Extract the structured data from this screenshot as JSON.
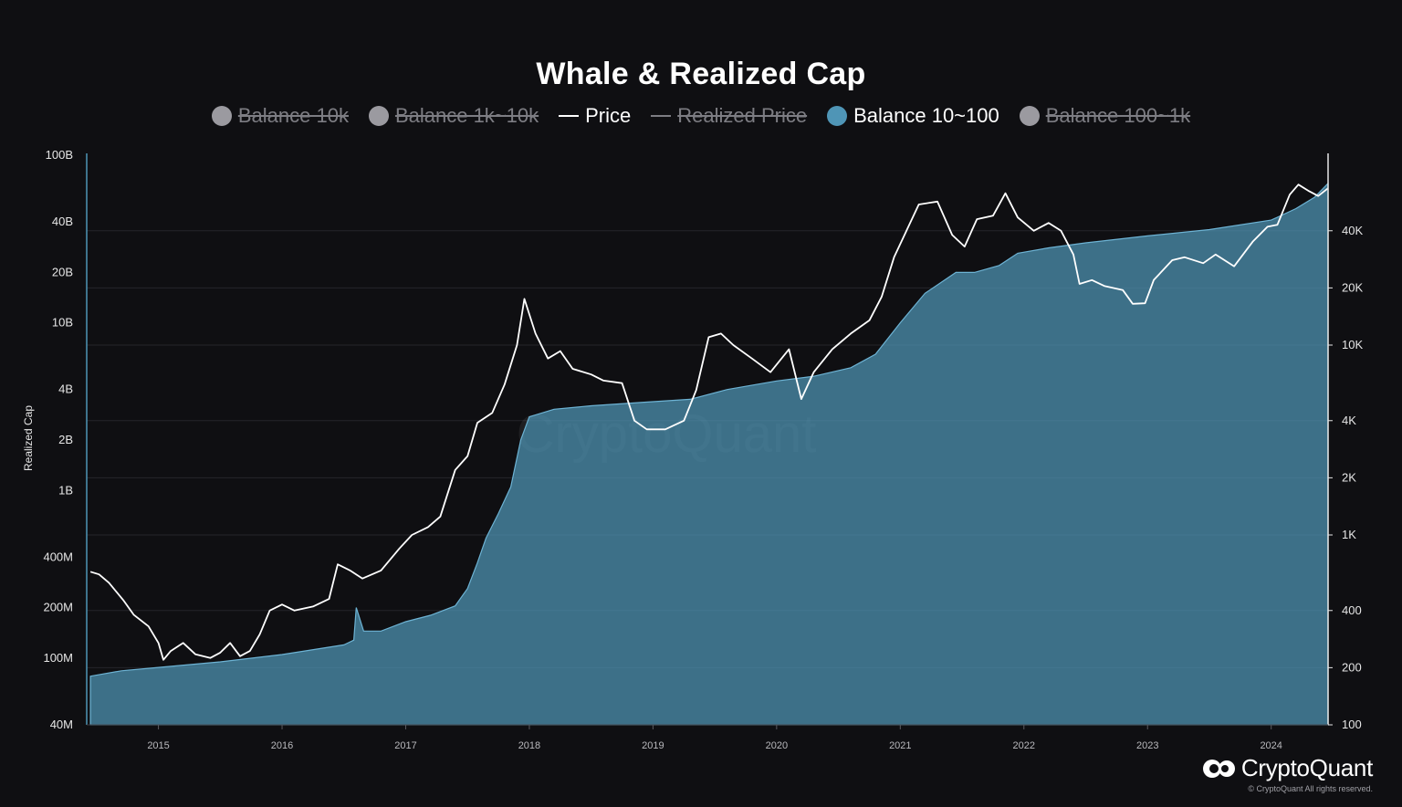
{
  "chart_data": {
    "type": "area",
    "title": "Whale & Realized Cap",
    "legend": [
      {
        "label": "Balance 10k",
        "marker": "dot",
        "color": "#9b9aa0",
        "active": false
      },
      {
        "label": "Balance 1k~10k",
        "marker": "dot",
        "color": "#9b9aa0",
        "active": false
      },
      {
        "label": "Price",
        "marker": "line",
        "color": "#ffffff",
        "active": true
      },
      {
        "label": "Realized Price",
        "marker": "line",
        "color": "#7d7d83",
        "active": false
      },
      {
        "label": "Balance 10~100",
        "marker": "dot",
        "color": "#4f95b6",
        "active": true
      },
      {
        "label": "Balance 100~1k",
        "marker": "dot",
        "color": "#9b9aa0",
        "active": false
      }
    ],
    "ylabel": "Realized Cap",
    "y_left": {
      "scale": "log",
      "ylim": [
        40000000,
        100000000000
      ],
      "ticks": [
        {
          "v": 100000000000,
          "label": "100B"
        },
        {
          "v": 40000000000,
          "label": "40B"
        },
        {
          "v": 20000000000,
          "label": "20B"
        },
        {
          "v": 10000000000,
          "label": "10B"
        },
        {
          "v": 4000000000,
          "label": "4B"
        },
        {
          "v": 2000000000,
          "label": "2B"
        },
        {
          "v": 1000000000,
          "label": "1B"
        },
        {
          "v": 400000000,
          "label": "400M"
        },
        {
          "v": 200000000,
          "label": "200M"
        },
        {
          "v": 100000000,
          "label": "100M"
        },
        {
          "v": 40000000,
          "label": "40M"
        }
      ]
    },
    "y_right": {
      "scale": "log",
      "ylim": [
        100,
        100000
      ],
      "ticks": [
        {
          "v": 40000,
          "label": "40K"
        },
        {
          "v": 20000,
          "label": "20K"
        },
        {
          "v": 10000,
          "label": "10K"
        },
        {
          "v": 4000,
          "label": "4K"
        },
        {
          "v": 2000,
          "label": "2K"
        },
        {
          "v": 1000,
          "label": "1K"
        },
        {
          "v": 400,
          "label": "400"
        },
        {
          "v": 200,
          "label": "200"
        },
        {
          "v": 100,
          "label": "100"
        }
      ]
    },
    "x_range": [
      2014.42,
      2024.46
    ],
    "x_ticks": [
      "2015",
      "2016",
      "2017",
      "2018",
      "2019",
      "2020",
      "2021",
      "2022",
      "2023",
      "2024"
    ],
    "grid": true,
    "series": [
      {
        "name": "Balance 10~100",
        "axis": "left",
        "type": "area",
        "color": "#4f95b6",
        "points": [
          [
            2014.45,
            78000000
          ],
          [
            2014.7,
            84000000
          ],
          [
            2015.0,
            88000000
          ],
          [
            2015.5,
            95000000
          ],
          [
            2016.0,
            105000000
          ],
          [
            2016.5,
            120000000
          ],
          [
            2016.58,
            128000000
          ],
          [
            2016.6,
            200000000
          ],
          [
            2016.66,
            145000000
          ],
          [
            2016.8,
            145000000
          ],
          [
            2017.0,
            165000000
          ],
          [
            2017.2,
            180000000
          ],
          [
            2017.4,
            205000000
          ],
          [
            2017.5,
            260000000
          ],
          [
            2017.58,
            370000000
          ],
          [
            2017.65,
            520000000
          ],
          [
            2017.75,
            730000000
          ],
          [
            2017.85,
            1050000000
          ],
          [
            2017.93,
            2000000000
          ],
          [
            2018.0,
            2750000000
          ],
          [
            2018.2,
            3050000000
          ],
          [
            2018.5,
            3200000000
          ],
          [
            2018.9,
            3350000000
          ],
          [
            2019.3,
            3500000000
          ],
          [
            2019.6,
            4000000000
          ],
          [
            2020.0,
            4500000000
          ],
          [
            2020.3,
            4800000000
          ],
          [
            2020.6,
            5400000000
          ],
          [
            2020.8,
            6500000000
          ],
          [
            2021.0,
            10000000000
          ],
          [
            2021.2,
            15000000000
          ],
          [
            2021.45,
            20000000000
          ],
          [
            2021.6,
            20000000000
          ],
          [
            2021.8,
            22000000000
          ],
          [
            2021.95,
            26000000000
          ],
          [
            2022.2,
            28000000000
          ],
          [
            2022.5,
            30000000000
          ],
          [
            2023.0,
            33000000000
          ],
          [
            2023.5,
            36000000000
          ],
          [
            2024.0,
            41000000000
          ],
          [
            2024.2,
            48000000000
          ],
          [
            2024.35,
            56000000000
          ],
          [
            2024.46,
            68000000000
          ]
        ]
      },
      {
        "name": "Price",
        "axis": "right",
        "type": "line",
        "color": "#ffffff",
        "points": [
          [
            2014.45,
            640
          ],
          [
            2014.52,
            620
          ],
          [
            2014.6,
            560
          ],
          [
            2014.72,
            450
          ],
          [
            2014.8,
            380
          ],
          [
            2014.92,
            330
          ],
          [
            2015.0,
            270
          ],
          [
            2015.04,
            220
          ],
          [
            2015.1,
            245
          ],
          [
            2015.2,
            270
          ],
          [
            2015.3,
            235
          ],
          [
            2015.42,
            225
          ],
          [
            2015.5,
            240
          ],
          [
            2015.58,
            270
          ],
          [
            2015.66,
            230
          ],
          [
            2015.74,
            245
          ],
          [
            2015.82,
            300
          ],
          [
            2015.9,
            400
          ],
          [
            2016.0,
            430
          ],
          [
            2016.1,
            400
          ],
          [
            2016.25,
            420
          ],
          [
            2016.38,
            460
          ],
          [
            2016.45,
            700
          ],
          [
            2016.55,
            650
          ],
          [
            2016.65,
            590
          ],
          [
            2016.8,
            650
          ],
          [
            2016.95,
            850
          ],
          [
            2017.05,
            1000
          ],
          [
            2017.18,
            1100
          ],
          [
            2017.28,
            1250
          ],
          [
            2017.4,
            2200
          ],
          [
            2017.5,
            2600
          ],
          [
            2017.58,
            3900
          ],
          [
            2017.7,
            4400
          ],
          [
            2017.8,
            6200
          ],
          [
            2017.9,
            10000
          ],
          [
            2017.96,
            17500
          ],
          [
            2018.05,
            11500
          ],
          [
            2018.15,
            8500
          ],
          [
            2018.25,
            9300
          ],
          [
            2018.35,
            7500
          ],
          [
            2018.5,
            7000
          ],
          [
            2018.6,
            6500
          ],
          [
            2018.75,
            6300
          ],
          [
            2018.85,
            4000
          ],
          [
            2018.95,
            3600
          ],
          [
            2019.1,
            3600
          ],
          [
            2019.25,
            4000
          ],
          [
            2019.35,
            5800
          ],
          [
            2019.45,
            11000
          ],
          [
            2019.55,
            11500
          ],
          [
            2019.65,
            10000
          ],
          [
            2019.8,
            8500
          ],
          [
            2019.95,
            7200
          ],
          [
            2020.1,
            9500
          ],
          [
            2020.2,
            5200
          ],
          [
            2020.3,
            7200
          ],
          [
            2020.45,
            9500
          ],
          [
            2020.6,
            11500
          ],
          [
            2020.75,
            13500
          ],
          [
            2020.85,
            18000
          ],
          [
            2020.95,
            29000
          ],
          [
            2021.05,
            40000
          ],
          [
            2021.15,
            55000
          ],
          [
            2021.3,
            57000
          ],
          [
            2021.42,
            38000
          ],
          [
            2021.52,
            33000
          ],
          [
            2021.62,
            46000
          ],
          [
            2021.75,
            48000
          ],
          [
            2021.85,
            63000
          ],
          [
            2021.95,
            47000
          ],
          [
            2022.08,
            40000
          ],
          [
            2022.2,
            44000
          ],
          [
            2022.3,
            40000
          ],
          [
            2022.4,
            30000
          ],
          [
            2022.45,
            21000
          ],
          [
            2022.55,
            22000
          ],
          [
            2022.65,
            20500
          ],
          [
            2022.8,
            19500
          ],
          [
            2022.88,
            16500
          ],
          [
            2022.98,
            16600
          ],
          [
            2023.05,
            22000
          ],
          [
            2023.2,
            28000
          ],
          [
            2023.3,
            29000
          ],
          [
            2023.45,
            27000
          ],
          [
            2023.55,
            30000
          ],
          [
            2023.7,
            26000
          ],
          [
            2023.85,
            35000
          ],
          [
            2023.97,
            42000
          ],
          [
            2024.05,
            43000
          ],
          [
            2024.15,
            62000
          ],
          [
            2024.22,
            70000
          ],
          [
            2024.3,
            65000
          ],
          [
            2024.38,
            61000
          ],
          [
            2024.46,
            67000
          ]
        ]
      }
    ],
    "watermark": "CryptoQuant"
  },
  "brand": {
    "name": "CryptoQuant",
    "copyright": "© CryptoQuant All rights reserved."
  }
}
